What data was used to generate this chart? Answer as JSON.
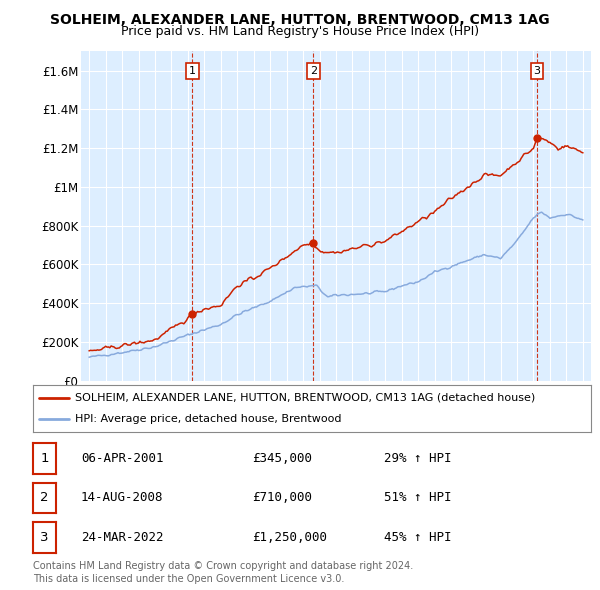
{
  "title": "SOLHEIM, ALEXANDER LANE, HUTTON, BRENTWOOD, CM13 1AG",
  "subtitle": "Price paid vs. HM Land Registry's House Price Index (HPI)",
  "x_start_year": 1995,
  "x_end_year": 2025,
  "y_max": 1700000,
  "y_ticks": [
    0,
    200000,
    400000,
    600000,
    800000,
    1000000,
    1200000,
    1400000,
    1600000
  ],
  "y_tick_labels": [
    "£0",
    "£200K",
    "£400K",
    "£600K",
    "£800K",
    "£1M",
    "£1.2M",
    "£1.4M",
    "£1.6M"
  ],
  "sale_color": "#cc2200",
  "hpi_color": "#88aadd",
  "sale_label": "SOLHEIM, ALEXANDER LANE, HUTTON, BRENTWOOD, CM13 1AG (detached house)",
  "hpi_label": "HPI: Average price, detached house, Brentwood",
  "transaction_years": [
    2001.27,
    2008.62,
    2022.22
  ],
  "transaction_prices": [
    345000,
    710000,
    1250000
  ],
  "transaction_nums": [
    "1",
    "2",
    "3"
  ],
  "transaction_dates": [
    "06-APR-2001",
    "14-AUG-2008",
    "24-MAR-2022"
  ],
  "transaction_price_labels": [
    "£345,000",
    "£710,000",
    "£1,250,000"
  ],
  "transaction_hpi": [
    "29% ↑ HPI",
    "51% ↑ HPI",
    "45% ↑ HPI"
  ],
  "footnote1": "Contains HM Land Registry data © Crown copyright and database right 2024.",
  "footnote2": "This data is licensed under the Open Government Licence v3.0.",
  "background_color": "#ffffff",
  "plot_bg_color": "#ddeeff",
  "grid_color": "#ffffff",
  "vline_color": "#cc2200"
}
